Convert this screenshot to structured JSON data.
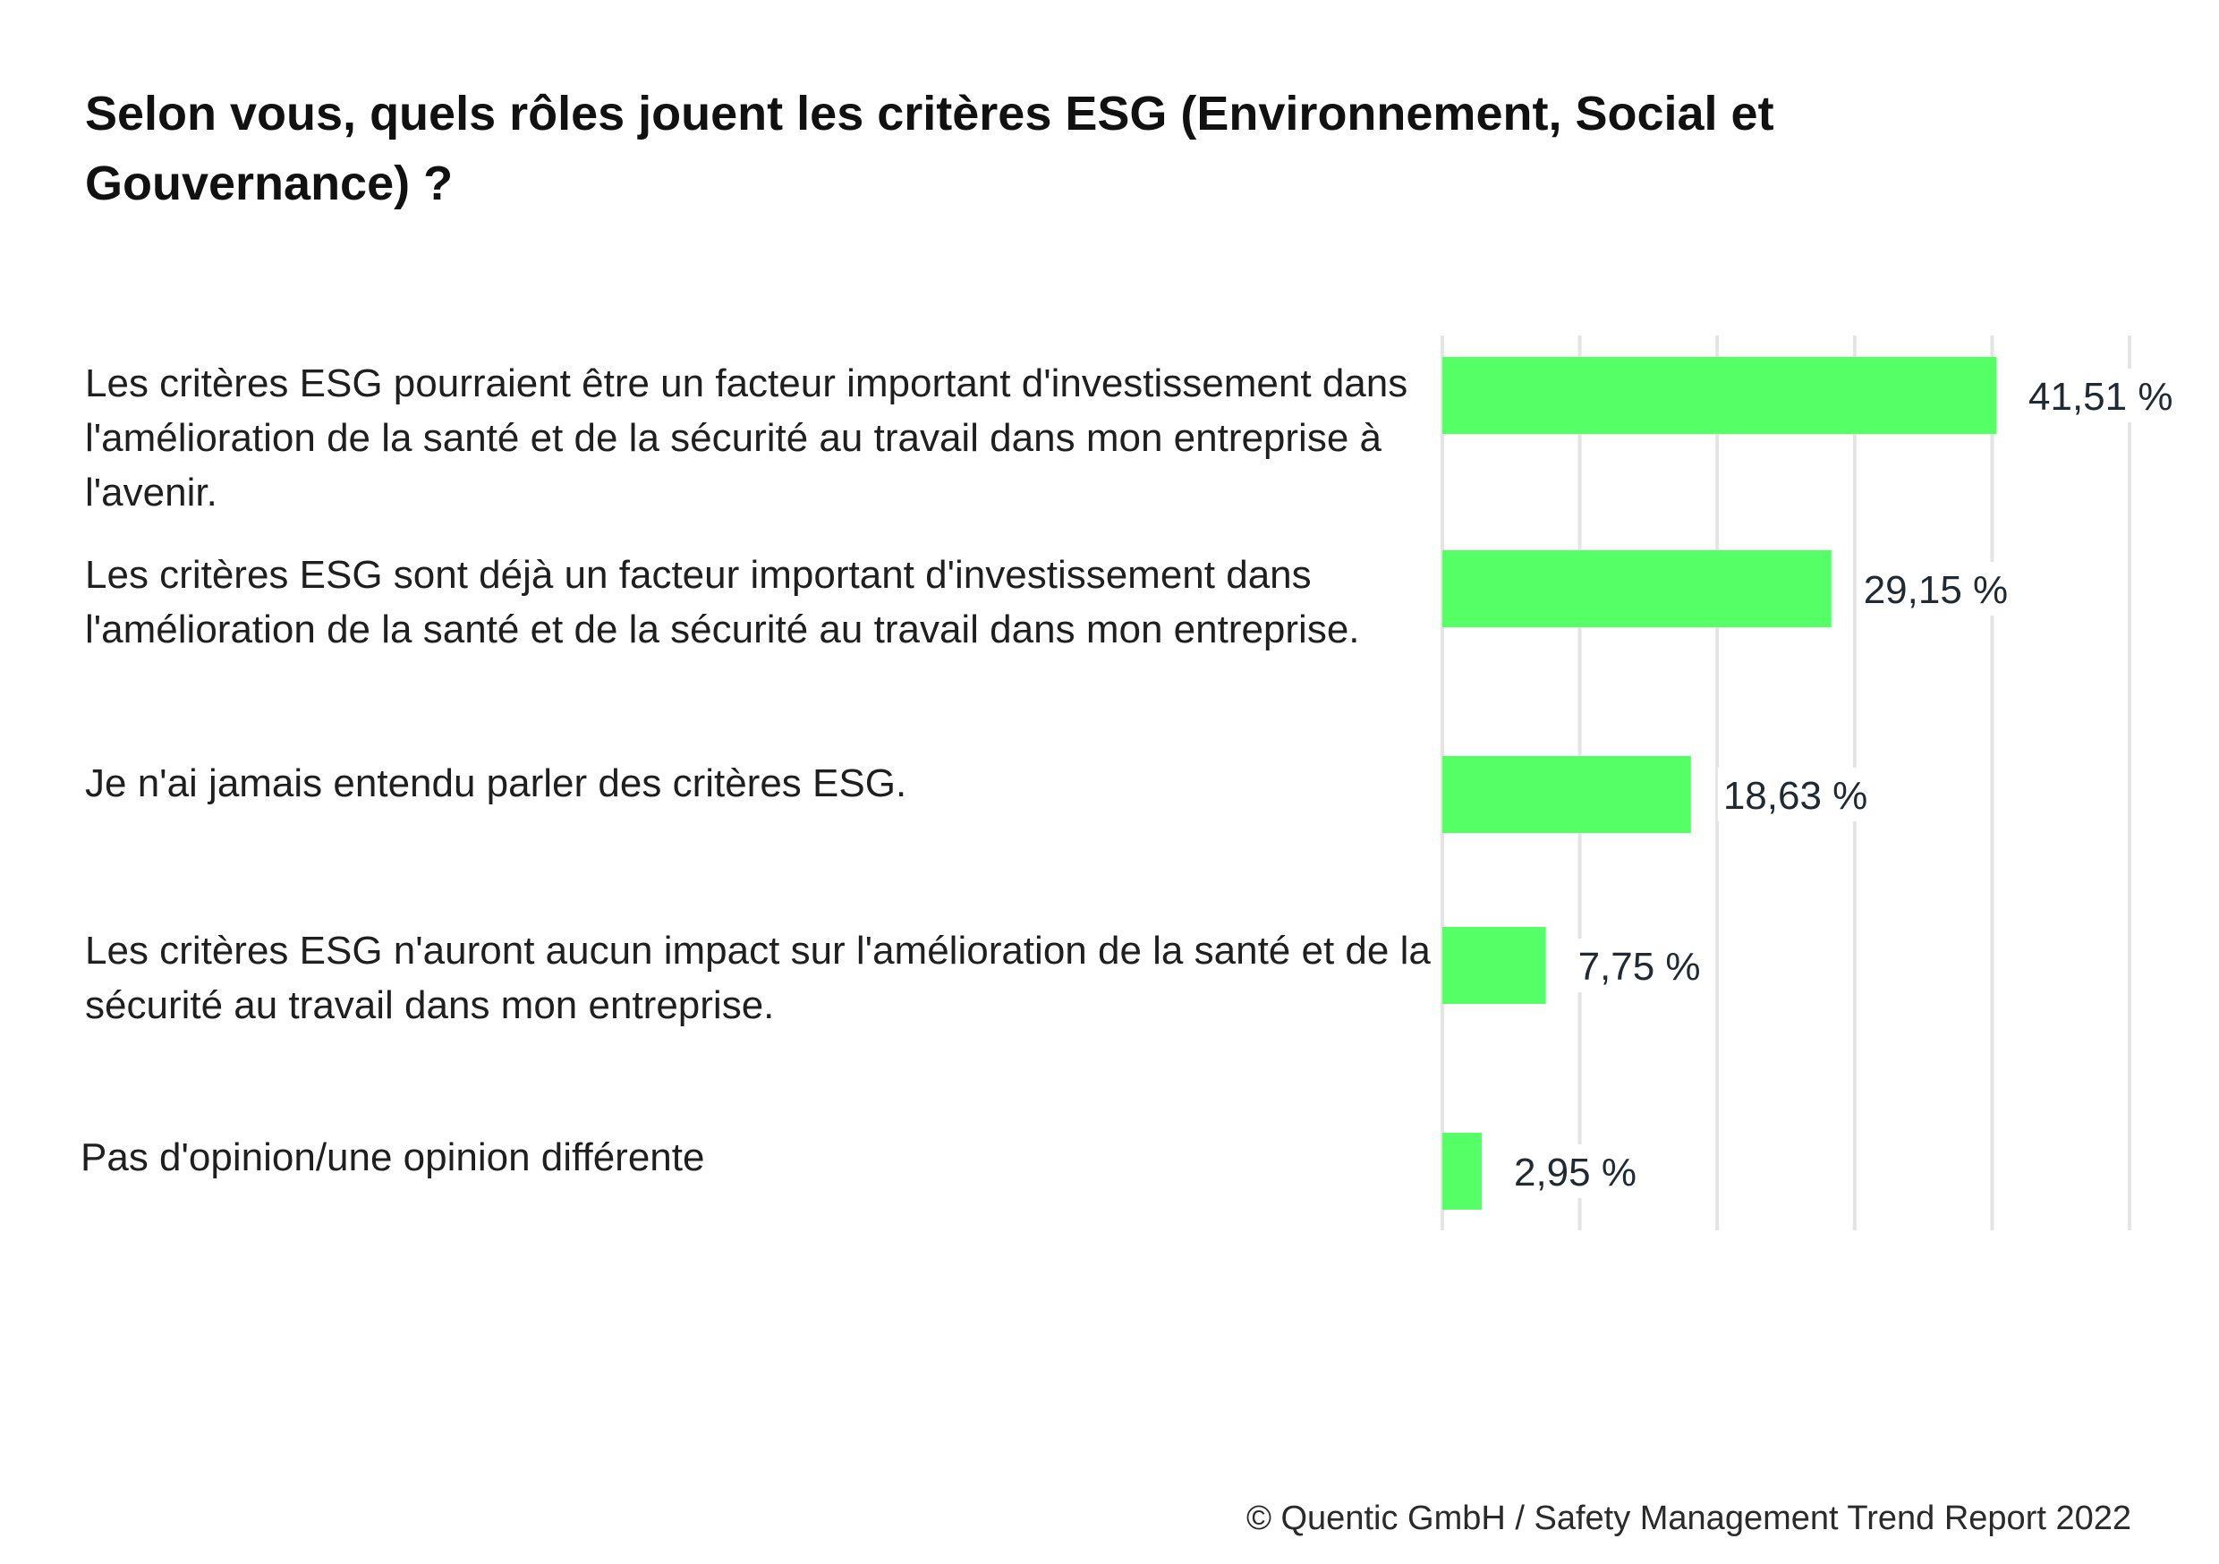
{
  "chart_data": {
    "type": "bar",
    "orientation": "horizontal",
    "title": "Selon vous, quels rôles jouent les critères ESG (Environnement, Social et Gouvernance) ?",
    "categories": [
      "Les critères ESG pourraient être un facteur important d'investissement dans l'amélioration de la santé et de la sécurité au travail dans mon entreprise à l'avenir.",
      "Les critères ESG sont déjà un facteur important d'investissement dans l'amélioration de la santé et de la sécurité au travail dans mon entreprise.",
      "Je n'ai jamais entendu parler des critères ESG.",
      "Les critères ESG n'auront aucun impact sur l'amélioration de la santé et de la sécurité au travail dans mon entreprise.",
      "Pas d'opinion/une opinion différente"
    ],
    "values": [
      41.51,
      29.15,
      18.63,
      7.75,
      2.95
    ],
    "value_labels": [
      "41,51 %",
      "29,15 %",
      "18,63 %",
      "7,75 %",
      "2,95 %"
    ],
    "unit": "%",
    "xlim": [
      0,
      51.5
    ],
    "gridlines": [
      0,
      10.3,
      20.6,
      30.9,
      41.2,
      51.5
    ],
    "grid": true,
    "legend": "none",
    "colors": {
      "bar": "#55FF66",
      "grid": "#E4E4E4",
      "value_text": "#1F2A33"
    }
  },
  "footer": "© Quentic GmbH / Safety Management Trend Report 2022"
}
